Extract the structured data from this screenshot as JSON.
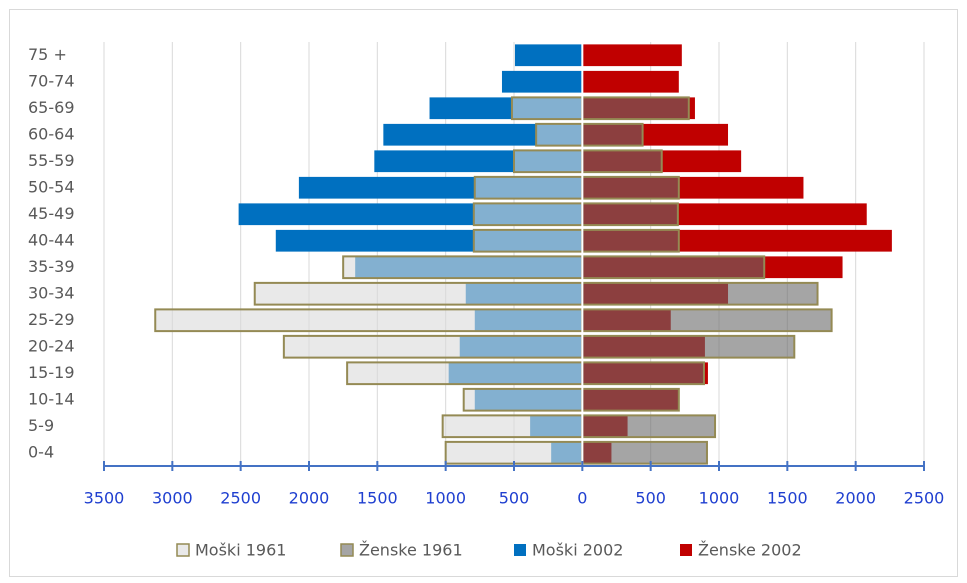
{
  "chart_data": {
    "type": "pyramid",
    "categories": [
      "0-4",
      "5-9",
      "10-14",
      "15-19",
      "20-24",
      "25-29",
      "30-34",
      "35-39",
      "40-44",
      "45-49",
      "50-54",
      "55-59",
      "60-64",
      "65-69",
      "70-74",
      "75 +"
    ],
    "series": [
      {
        "name": "Moški 1961",
        "color": "#dadada",
        "values": [
          -1000,
          -1022,
          -868,
          -1721,
          -2184,
          -3125,
          -2397,
          -1750,
          -794,
          -794,
          -787,
          -500,
          -338,
          -515,
          null,
          null
        ]
      },
      {
        "name": "Ženske 1961",
        "color": "#696969",
        "values": [
          912,
          971,
          706,
          890,
          1551,
          1824,
          1721,
          1331,
          706,
          699,
          706,
          581,
          441,
          779,
          null,
          null
        ]
      },
      {
        "name": "Moški 2002",
        "color": "#0070c0",
        "values": [
          -228,
          -382,
          -787,
          -978,
          -897,
          -787,
          -853,
          -1662,
          -2243,
          -2515,
          -2074,
          -1522,
          -1456,
          -1118,
          -588,
          -493
        ]
      },
      {
        "name": "Ženske 2002",
        "color": "#c00000",
        "values": [
          213,
          331,
          700,
          919,
          897,
          647,
          1066,
          1904,
          2265,
          2081,
          1618,
          1162,
          1066,
          824,
          706,
          728
        ]
      }
    ],
    "xlim": [
      -3500,
      2500
    ],
    "xticks": [
      {
        "value": -3500,
        "label": "3500"
      },
      {
        "value": -3000,
        "label": "3000"
      },
      {
        "value": -2500,
        "label": "2500"
      },
      {
        "value": -2000,
        "label": "2000"
      },
      {
        "value": -1500,
        "label": "1500"
      },
      {
        "value": -1000,
        "label": "1000"
      },
      {
        "value": -500,
        "label": "500"
      },
      0,
      500,
      1000,
      1500,
      2000,
      2500
    ],
    "grid": true,
    "legend": "bottom"
  }
}
